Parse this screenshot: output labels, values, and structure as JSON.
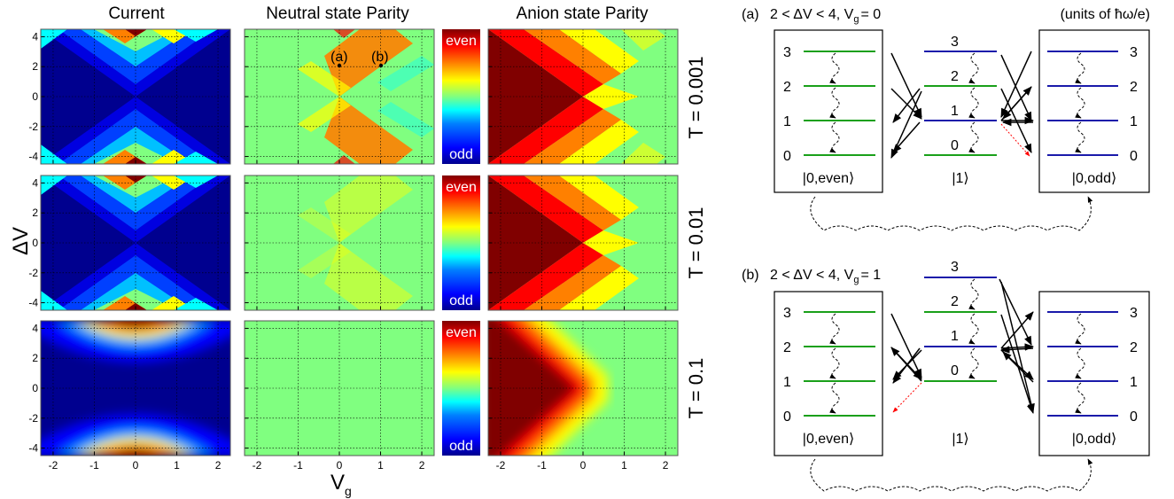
{
  "colors": {
    "jet": [
      "#00008f",
      "#0000ff",
      "#0080ff",
      "#00ffff",
      "#80ff80",
      "#ffff00",
      "#ff8000",
      "#ff0000",
      "#800000"
    ],
    "green_level": "#1aa01a",
    "blue_level": "#1a1aaa",
    "red_dotted": "#ff0000",
    "grid": "#000000"
  },
  "columns": {
    "current": "Current",
    "neutral": "Neutral state Parity",
    "anion": "Anion state Parity"
  },
  "axes": {
    "ylabel": "ΔV",
    "xlabel_main": "V",
    "xlabel_sub": "g",
    "yticks": [
      "4",
      "2",
      "0",
      "-2",
      "-4"
    ],
    "xticks": [
      "-2",
      "-1",
      "0",
      "1",
      "2"
    ]
  },
  "colorbar": {
    "top": "even",
    "bottom": "odd"
  },
  "rows": [
    {
      "label": "T = 0.001"
    },
    {
      "label": "T = 0.01"
    },
    {
      "label": "T = 0.1"
    }
  ],
  "markers": [
    {
      "label": "(a)",
      "vg": 0,
      "dv": 2
    },
    {
      "label": "(b)",
      "vg": 1,
      "dv": 2
    }
  ],
  "panel_a": {
    "tag": "(a)",
    "condition_main": "2 < ΔV < 4, V",
    "condition_sub": "g",
    "condition_tail": "= 0",
    "units": "(units of ħω/e)",
    "left_box_label": "|0,even⟩",
    "middle_label": "|1⟩",
    "right_box_label": "|0,odd⟩",
    "left_levels": [
      "3",
      "2",
      "1",
      "0"
    ],
    "middle_levels": [
      "3",
      "2",
      "1",
      "0"
    ],
    "right_levels": [
      "3",
      "2",
      "1",
      "0"
    ]
  },
  "panel_b": {
    "tag": "(b)",
    "condition_main": "2 < ΔV < 4, V",
    "condition_sub": "g",
    "condition_tail": "= 1",
    "left_box_label": "|0,even⟩",
    "middle_label": "|1⟩",
    "right_box_label": "|0,odd⟩",
    "left_levels": [
      "3",
      "2",
      "1",
      "0"
    ],
    "middle_levels": [
      "3",
      "2",
      "1",
      "0"
    ],
    "right_levels": [
      "3",
      "2",
      "1",
      "0"
    ]
  }
}
